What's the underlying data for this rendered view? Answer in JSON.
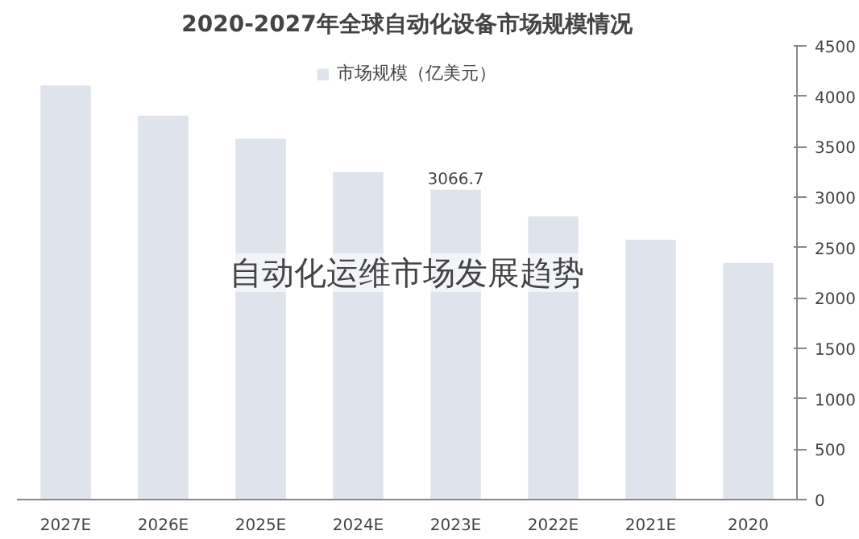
{
  "chart_data": {
    "type": "bar",
    "title": "2020-2027年全球自动化设备市场规模情况",
    "categories": [
      "2027E",
      "2026E",
      "2025E",
      "2024E",
      "2023E",
      "2022E",
      "2021E",
      "2020"
    ],
    "series": [
      {
        "name": "市场规模（亿美元）",
        "color": "#dfe3ec",
        "values": [
          4100,
          3800,
          3570,
          3240,
          3066.7,
          2800,
          2570,
          2340
        ],
        "value_labels": [
          null,
          null,
          null,
          null,
          "3066.7",
          null,
          null,
          null
        ]
      }
    ],
    "ylim": [
      0,
      4500
    ],
    "yticks": [
      0,
      500,
      1000,
      1500,
      2000,
      2500,
      3000,
      3500,
      4000,
      4500
    ],
    "grid": false,
    "legend": "top",
    "annotations": [
      "自动化运维市场发展趋势"
    ]
  }
}
